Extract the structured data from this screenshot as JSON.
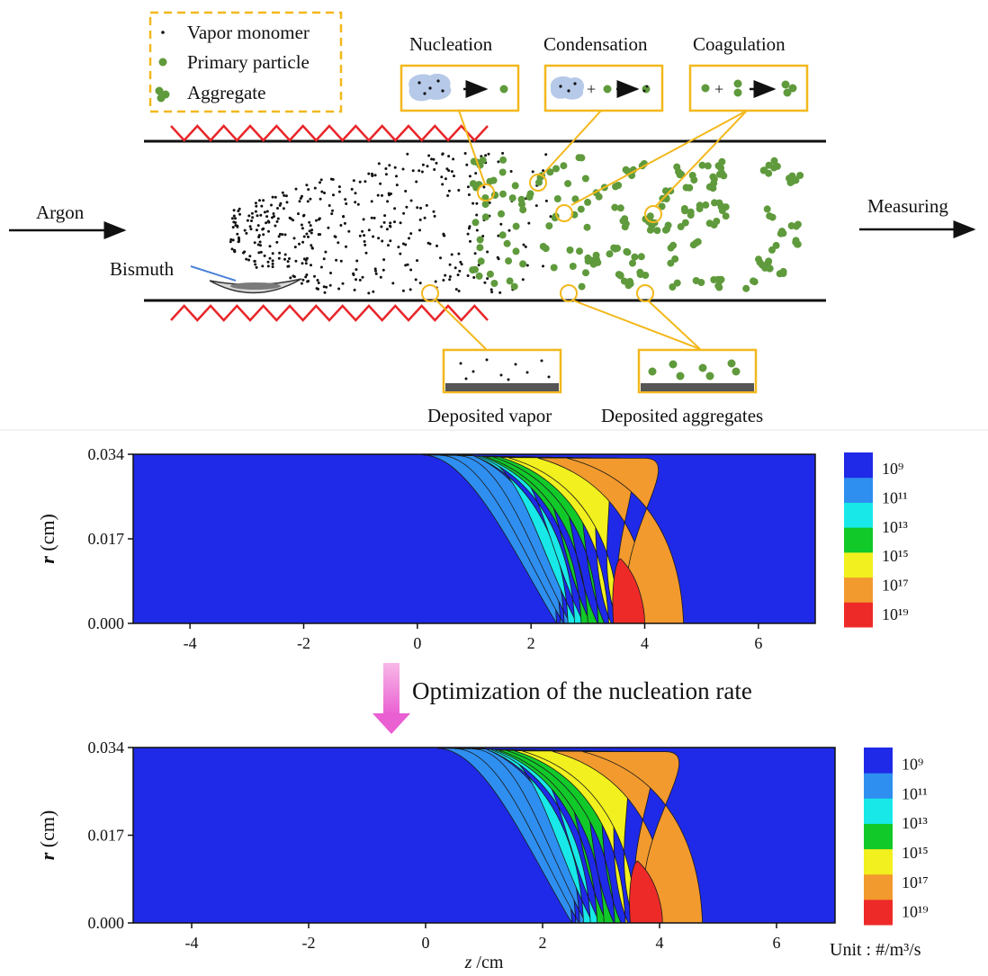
{
  "schematic": {
    "legend": {
      "vapor_monomer": "Vapor monomer",
      "primary_particle": "Primary particle",
      "aggregate": "Aggregate"
    },
    "processes": {
      "nucleation": "Nucleation",
      "condensation": "Condensation",
      "coagulation": "Coagulation"
    },
    "inlet_label": "Argon",
    "outlet_label": "Measuring",
    "source_label": "Bismuth",
    "deposited_vapor": "Deposited vapor",
    "deposited_aggregates": "Deposited aggregates",
    "colors": {
      "frame_yellow": "#f2b81c",
      "heater_red": "#e8262a",
      "particle_green": "#5f9a3c",
      "vapor_black": "#111111"
    }
  },
  "arrow_text": "Optimization of the nucleation rate",
  "unit_label": "Unit : #/m³/s",
  "chart_data": [
    {
      "type": "heatmap",
      "quantity": "nucleation rate",
      "xlabel": "",
      "ylabel": "r (cm)",
      "xlim": [
        -5,
        7
      ],
      "ylim": [
        0,
        0.034
      ],
      "x_ticks": [
        "-4",
        "-2",
        "0",
        "2",
        "4",
        "6"
      ],
      "y_ticks": [
        "0.000",
        "0.017",
        "0.034"
      ],
      "colorbar_labels": [
        "10⁹",
        "10¹¹",
        "10¹³",
        "10¹⁵",
        "10¹⁷",
        "10¹⁹"
      ],
      "colorbar_colors": [
        "#1f2ae8",
        "#2f8ff0",
        "#18e8e8",
        "#12c92a",
        "#f2f01e",
        "#f29a2e",
        "#ee2a28"
      ],
      "region_lower_z": [
        0.3,
        0.9,
        1.6,
        2.3,
        3.5
      ],
      "region_upper_z": [
        2.45,
        2.65,
        3.0,
        3.55,
        5.25
      ],
      "core_z": [
        3.45,
        4.0
      ],
      "core_r_top": 0.013
    },
    {
      "type": "heatmap",
      "quantity": "nucleation rate (optimized)",
      "xlabel": "z /cm",
      "ylabel": "r (cm)",
      "xlim": [
        -5,
        7
      ],
      "ylim": [
        0,
        0.034
      ],
      "x_ticks": [
        "-4",
        "-2",
        "0",
        "2",
        "4",
        "6"
      ],
      "y_ticks": [
        "0.000",
        "0.017",
        "0.034"
      ],
      "colorbar_labels": [
        "10⁹",
        "10¹¹",
        "10¹³",
        "10¹⁵",
        "10¹⁷",
        "10¹⁹"
      ],
      "colorbar_colors": [
        "#1f2ae8",
        "#2f8ff0",
        "#18e8e8",
        "#12c92a",
        "#f2f01e",
        "#f29a2e",
        "#ee2a28"
      ],
      "region_lower_z": [
        0.4,
        1.0,
        1.8,
        2.4,
        3.6
      ],
      "region_upper_z": [
        2.5,
        2.7,
        3.05,
        3.6,
        5.3
      ],
      "core_z": [
        3.5,
        4.05
      ],
      "core_r_top": 0.012
    }
  ]
}
